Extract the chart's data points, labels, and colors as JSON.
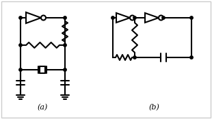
{
  "title": "",
  "label_a": "(a)",
  "label_b": "(b)",
  "bg_color": "#ffffff",
  "line_color": "#000000",
  "lw": 1.5,
  "fig_width": 3.1,
  "fig_height": 1.74,
  "dpi": 100
}
